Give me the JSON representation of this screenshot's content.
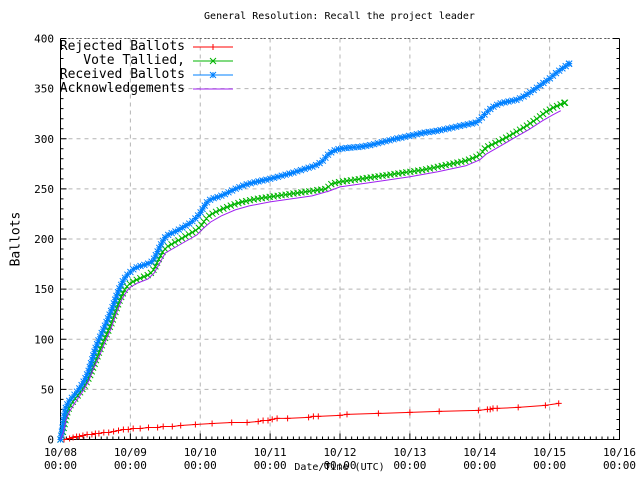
{
  "window": {
    "background": "#ffffff",
    "border_color": "#000000",
    "grid_color": "#b4b4b4"
  },
  "chart_data": {
    "type": "line",
    "title": "General Resolution: Recall the project leader",
    "xlabel": "Date/Time (UTC)",
    "ylabel": "Ballots",
    "xlim": [
      0,
      8
    ],
    "ylim": [
      0,
      400
    ],
    "y_tick_step": 50,
    "y_minor_step": 10,
    "x_minor_per_unit": 12,
    "grid": true,
    "legend_position": "top-left-inside",
    "x_ticks": [
      {
        "line1": "10/08",
        "line2": "00:00"
      },
      {
        "line1": "10/09",
        "line2": "00:00"
      },
      {
        "line1": "10/10",
        "line2": "00:00"
      },
      {
        "line1": "10/11",
        "line2": "00:00"
      },
      {
        "line1": "10/12",
        "line2": "00:00"
      },
      {
        "line1": "10/13",
        "line2": "00:00"
      },
      {
        "line1": "10/14",
        "line2": "00:00"
      },
      {
        "line1": "10/15",
        "line2": "00:00"
      },
      {
        "line1": "10/16",
        "line2": "00:00"
      }
    ],
    "y_ticks": [
      0,
      50,
      100,
      150,
      200,
      250,
      300,
      350,
      400
    ],
    "x_unit_note": "days after 10/08 00:00",
    "series": [
      {
        "name": "Rejected Ballots",
        "color": "#ff0000",
        "marker": "plus",
        "marker_mode": "points",
        "points": [
          [
            0.05,
            0
          ],
          [
            0.13,
            1
          ],
          [
            0.18,
            2
          ],
          [
            0.23,
            3
          ],
          [
            0.27,
            3
          ],
          [
            0.32,
            4
          ],
          [
            0.38,
            5
          ],
          [
            0.45,
            5
          ],
          [
            0.5,
            6
          ],
          [
            0.55,
            6
          ],
          [
            0.62,
            7
          ],
          [
            0.69,
            7
          ],
          [
            0.76,
            8
          ],
          [
            0.83,
            9
          ],
          [
            0.9,
            10
          ],
          [
            0.97,
            10
          ],
          [
            1.04,
            11
          ],
          [
            1.14,
            11
          ],
          [
            1.26,
            12
          ],
          [
            1.39,
            12
          ],
          [
            1.47,
            13
          ],
          [
            1.6,
            13
          ],
          [
            1.72,
            14
          ],
          [
            1.93,
            15
          ],
          [
            2.17,
            16
          ],
          [
            2.45,
            17
          ],
          [
            2.67,
            17
          ],
          [
            2.83,
            18
          ],
          [
            2.9,
            19
          ],
          [
            2.97,
            19
          ],
          [
            3.03,
            20
          ],
          [
            3.1,
            21
          ],
          [
            3.25,
            21
          ],
          [
            3.55,
            22
          ],
          [
            3.62,
            23
          ],
          [
            3.69,
            23
          ],
          [
            4.0,
            24
          ],
          [
            4.1,
            25
          ],
          [
            4.55,
            26
          ],
          [
            5.0,
            27
          ],
          [
            5.42,
            28
          ],
          [
            5.98,
            29
          ],
          [
            6.11,
            30
          ],
          [
            6.15,
            30
          ],
          [
            6.19,
            31
          ],
          [
            6.25,
            31
          ],
          [
            6.55,
            32
          ],
          [
            6.94,
            34
          ],
          [
            7.13,
            36
          ]
        ]
      },
      {
        "name": "Vote Tallied,",
        "color": "#00b400",
        "marker": "cross",
        "marker_mode": "dense",
        "points": [
          [
            0,
            0
          ],
          [
            0.03,
            6
          ],
          [
            0.06,
            16
          ],
          [
            0.1,
            28
          ],
          [
            0.14,
            34
          ],
          [
            0.2,
            40
          ],
          [
            0.27,
            46
          ],
          [
            0.33,
            52
          ],
          [
            0.38,
            58
          ],
          [
            0.43,
            65
          ],
          [
            0.48,
            74
          ],
          [
            0.53,
            83
          ],
          [
            0.58,
            92
          ],
          [
            0.63,
            100
          ],
          [
            0.68,
            108
          ],
          [
            0.73,
            116
          ],
          [
            0.78,
            126
          ],
          [
            0.83,
            136
          ],
          [
            0.88,
            144
          ],
          [
            0.93,
            151
          ],
          [
            1.0,
            156
          ],
          [
            1.08,
            159
          ],
          [
            1.18,
            162
          ],
          [
            1.28,
            165
          ],
          [
            1.34,
            170
          ],
          [
            1.4,
            179
          ],
          [
            1.46,
            187
          ],
          [
            1.52,
            192
          ],
          [
            1.62,
            196
          ],
          [
            1.72,
            200
          ],
          [
            1.82,
            204
          ],
          [
            1.92,
            208
          ],
          [
            2.0,
            212
          ],
          [
            2.06,
            218
          ],
          [
            2.12,
            223
          ],
          [
            2.22,
            227
          ],
          [
            2.32,
            230
          ],
          [
            2.46,
            234
          ],
          [
            2.6,
            237
          ],
          [
            2.8,
            240
          ],
          [
            3.0,
            242
          ],
          [
            3.2,
            244
          ],
          [
            3.4,
            246
          ],
          [
            3.6,
            248
          ],
          [
            3.8,
            250
          ],
          [
            3.88,
            255
          ],
          [
            4.0,
            257
          ],
          [
            4.2,
            259
          ],
          [
            4.4,
            261
          ],
          [
            4.6,
            263
          ],
          [
            4.8,
            265
          ],
          [
            5.0,
            267
          ],
          [
            5.2,
            269
          ],
          [
            5.4,
            272
          ],
          [
            5.6,
            275
          ],
          [
            5.8,
            278
          ],
          [
            5.95,
            282
          ],
          [
            6.02,
            285
          ],
          [
            6.08,
            291
          ],
          [
            6.2,
            295
          ],
          [
            6.35,
            300
          ],
          [
            6.5,
            306
          ],
          [
            6.65,
            312
          ],
          [
            6.8,
            319
          ],
          [
            6.95,
            327
          ],
          [
            7.05,
            331
          ],
          [
            7.15,
            334
          ],
          [
            7.22,
            336
          ]
        ]
      },
      {
        "name": "Received Ballots",
        "color": "#0080ff",
        "marker": "star",
        "marker_mode": "dense",
        "points": [
          [
            0,
            0
          ],
          [
            0.02,
            8
          ],
          [
            0.05,
            22
          ],
          [
            0.08,
            33
          ],
          [
            0.12,
            38
          ],
          [
            0.18,
            43
          ],
          [
            0.24,
            48
          ],
          [
            0.3,
            54
          ],
          [
            0.35,
            60
          ],
          [
            0.4,
            68
          ],
          [
            0.45,
            79
          ],
          [
            0.5,
            91
          ],
          [
            0.55,
            100
          ],
          [
            0.6,
            108
          ],
          [
            0.65,
            116
          ],
          [
            0.7,
            124
          ],
          [
            0.75,
            133
          ],
          [
            0.8,
            143
          ],
          [
            0.85,
            152
          ],
          [
            0.9,
            159
          ],
          [
            0.95,
            164
          ],
          [
            1.0,
            167
          ],
          [
            1.06,
            171
          ],
          [
            1.14,
            173
          ],
          [
            1.24,
            175
          ],
          [
            1.32,
            178
          ],
          [
            1.38,
            186
          ],
          [
            1.44,
            195
          ],
          [
            1.5,
            202
          ],
          [
            1.56,
            205
          ],
          [
            1.66,
            208
          ],
          [
            1.76,
            212
          ],
          [
            1.86,
            216
          ],
          [
            1.94,
            221
          ],
          [
            2.0,
            226
          ],
          [
            2.05,
            232
          ],
          [
            2.1,
            237
          ],
          [
            2.16,
            240
          ],
          [
            2.26,
            242
          ],
          [
            2.36,
            245
          ],
          [
            2.5,
            250
          ],
          [
            2.64,
            254
          ],
          [
            2.8,
            257
          ],
          [
            3.0,
            260
          ],
          [
            3.16,
            263
          ],
          [
            3.32,
            266
          ],
          [
            3.5,
            270
          ],
          [
            3.64,
            273
          ],
          [
            3.74,
            277
          ],
          [
            3.84,
            285
          ],
          [
            3.94,
            289
          ],
          [
            4.0,
            290
          ],
          [
            4.12,
            291
          ],
          [
            4.3,
            292
          ],
          [
            4.46,
            294
          ],
          [
            4.62,
            297
          ],
          [
            4.8,
            300
          ],
          [
            5.0,
            303
          ],
          [
            5.2,
            306
          ],
          [
            5.4,
            308
          ],
          [
            5.6,
            311
          ],
          [
            5.8,
            314
          ],
          [
            5.94,
            316
          ],
          [
            6.0,
            319
          ],
          [
            6.08,
            325
          ],
          [
            6.17,
            331
          ],
          [
            6.28,
            335
          ],
          [
            6.4,
            337
          ],
          [
            6.54,
            339
          ],
          [
            6.65,
            343
          ],
          [
            6.8,
            350
          ],
          [
            6.94,
            357
          ],
          [
            7.0,
            360
          ],
          [
            7.1,
            366
          ],
          [
            7.2,
            371
          ],
          [
            7.28,
            375
          ]
        ]
      },
      {
        "name": "Acknowledgements",
        "color": "#a020f0",
        "marker": "none",
        "marker_mode": "none",
        "points": [
          [
            0,
            0
          ],
          [
            0.04,
            7
          ],
          [
            0.08,
            20
          ],
          [
            0.13,
            28
          ],
          [
            0.2,
            36
          ],
          [
            0.3,
            46
          ],
          [
            0.4,
            58
          ],
          [
            0.48,
            72
          ],
          [
            0.55,
            82
          ],
          [
            0.63,
            96
          ],
          [
            0.72,
            110
          ],
          [
            0.8,
            126
          ],
          [
            0.88,
            140
          ],
          [
            0.95,
            148
          ],
          [
            1.0,
            152
          ],
          [
            1.1,
            156
          ],
          [
            1.25,
            160
          ],
          [
            1.34,
            166
          ],
          [
            1.42,
            176
          ],
          [
            1.5,
            186
          ],
          [
            1.65,
            192
          ],
          [
            1.8,
            198
          ],
          [
            1.95,
            204
          ],
          [
            2.05,
            211
          ],
          [
            2.15,
            217
          ],
          [
            2.3,
            223
          ],
          [
            2.5,
            229
          ],
          [
            2.7,
            233
          ],
          [
            3.0,
            237
          ],
          [
            3.3,
            240
          ],
          [
            3.6,
            243
          ],
          [
            3.85,
            248
          ],
          [
            4.0,
            252
          ],
          [
            4.3,
            255
          ],
          [
            4.6,
            258
          ],
          [
            5.0,
            262
          ],
          [
            5.4,
            267
          ],
          [
            5.8,
            273
          ],
          [
            6.0,
            279
          ],
          [
            6.1,
            285
          ],
          [
            6.3,
            293
          ],
          [
            6.5,
            301
          ],
          [
            6.7,
            309
          ],
          [
            6.9,
            318
          ],
          [
            7.05,
            324
          ],
          [
            7.16,
            328
          ]
        ]
      }
    ]
  }
}
